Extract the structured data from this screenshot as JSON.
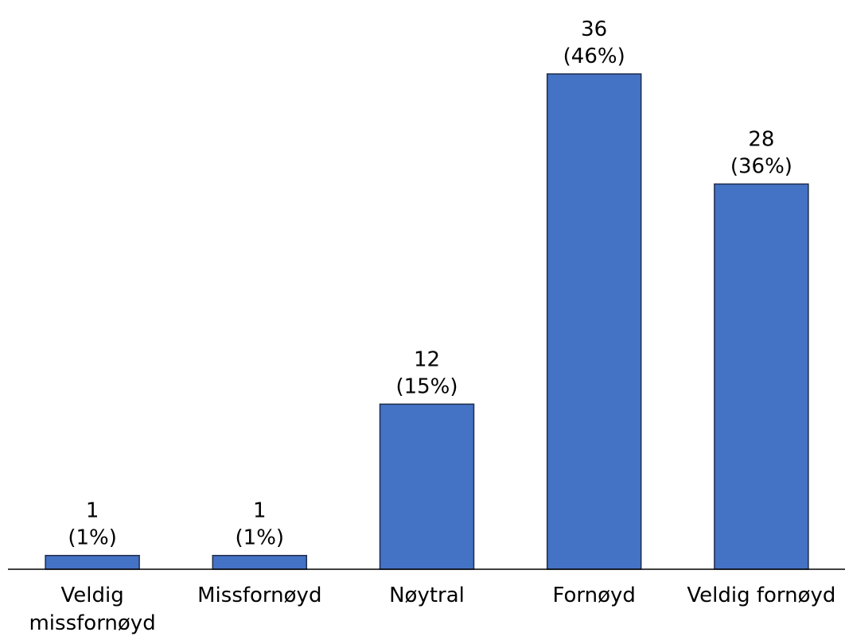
{
  "chart_data": {
    "type": "bar",
    "categories": [
      "Veldig missfornøyd",
      "Missfornøyd",
      "Nøytral",
      "Fornøyd",
      "Veldig fornøyd"
    ],
    "values": [
      1,
      1,
      12,
      36,
      28
    ],
    "percent_labels": [
      "(1%)",
      "(1%)",
      "(15%)",
      "(46%)",
      "(36%)"
    ],
    "color": "#4472c4"
  }
}
